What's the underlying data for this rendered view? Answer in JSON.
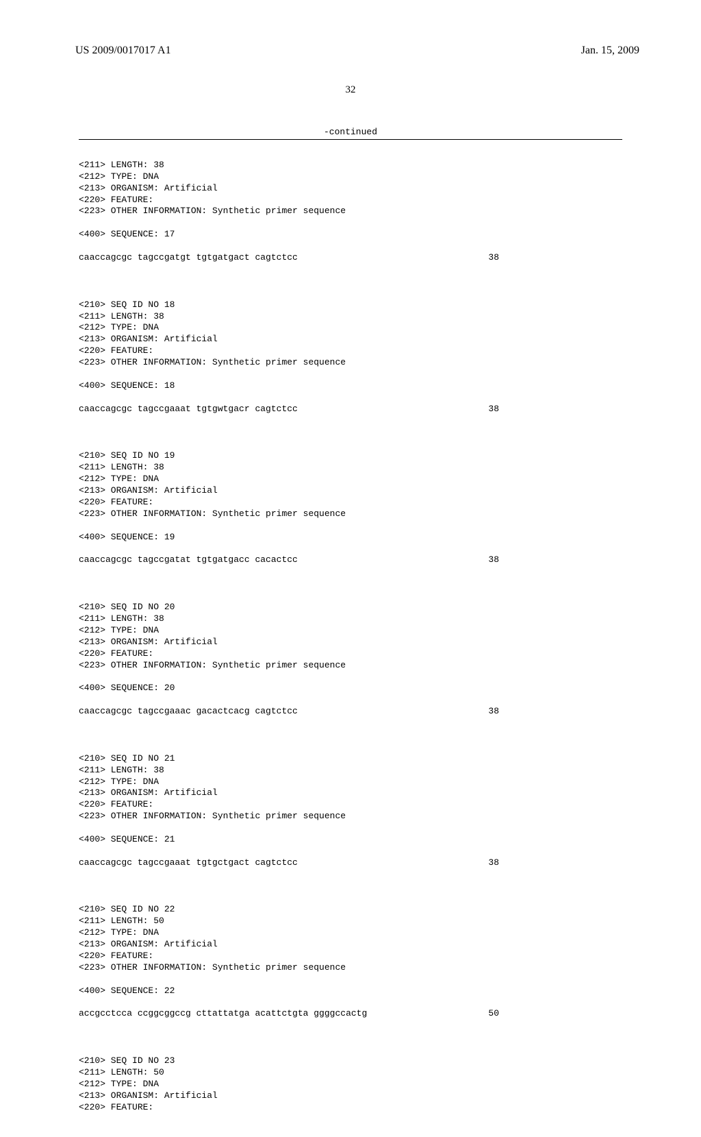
{
  "header": {
    "doc_number": "US 2009/0017017 A1",
    "date": "Jan. 15, 2009"
  },
  "page_number": "32",
  "continued_label": "-continued",
  "sequences": [
    {
      "meta": [
        "<211> LENGTH: 38",
        "<212> TYPE: DNA",
        "<213> ORGANISM: Artificial",
        "<220> FEATURE:",
        "<223> OTHER INFORMATION: Synthetic primer sequence"
      ],
      "seq_label": "<400> SEQUENCE: 17",
      "sequence": "caaccagcgc tagccgatgt tgtgatgact cagtctcc",
      "length": "38"
    },
    {
      "meta": [
        "<210> SEQ ID NO 18",
        "<211> LENGTH: 38",
        "<212> TYPE: DNA",
        "<213> ORGANISM: Artificial",
        "<220> FEATURE:",
        "<223> OTHER INFORMATION: Synthetic primer sequence"
      ],
      "seq_label": "<400> SEQUENCE: 18",
      "sequence": "caaccagcgc tagccgaaat tgtgwtgacr cagtctcc",
      "length": "38"
    },
    {
      "meta": [
        "<210> SEQ ID NO 19",
        "<211> LENGTH: 38",
        "<212> TYPE: DNA",
        "<213> ORGANISM: Artificial",
        "<220> FEATURE:",
        "<223> OTHER INFORMATION: Synthetic primer sequence"
      ],
      "seq_label": "<400> SEQUENCE: 19",
      "sequence": "caaccagcgc tagccgatat tgtgatgacc cacactcc",
      "length": "38"
    },
    {
      "meta": [
        "<210> SEQ ID NO 20",
        "<211> LENGTH: 38",
        "<212> TYPE: DNA",
        "<213> ORGANISM: Artificial",
        "<220> FEATURE:",
        "<223> OTHER INFORMATION: Synthetic primer sequence"
      ],
      "seq_label": "<400> SEQUENCE: 20",
      "sequence": "caaccagcgc tagccgaaac gacactcacg cagtctcc",
      "length": "38"
    },
    {
      "meta": [
        "<210> SEQ ID NO 21",
        "<211> LENGTH: 38",
        "<212> TYPE: DNA",
        "<213> ORGANISM: Artificial",
        "<220> FEATURE:",
        "<223> OTHER INFORMATION: Synthetic primer sequence"
      ],
      "seq_label": "<400> SEQUENCE: 21",
      "sequence": "caaccagcgc tagccgaaat tgtgctgact cagtctcc",
      "length": "38"
    },
    {
      "meta": [
        "<210> SEQ ID NO 22",
        "<211> LENGTH: 50",
        "<212> TYPE: DNA",
        "<213> ORGANISM: Artificial",
        "<220> FEATURE:",
        "<223> OTHER INFORMATION: Synthetic primer sequence"
      ],
      "seq_label": "<400> SEQUENCE: 22",
      "sequence": "accgcctcca ccggcggccg cttattatga acattctgta ggggccactg",
      "length": "50"
    },
    {
      "meta": [
        "<210> SEQ ID NO 23",
        "<211> LENGTH: 50",
        "<212> TYPE: DNA",
        "<213> ORGANISM: Artificial",
        "<220> FEATURE:"
      ],
      "seq_label": "",
      "sequence": "",
      "length": ""
    }
  ]
}
